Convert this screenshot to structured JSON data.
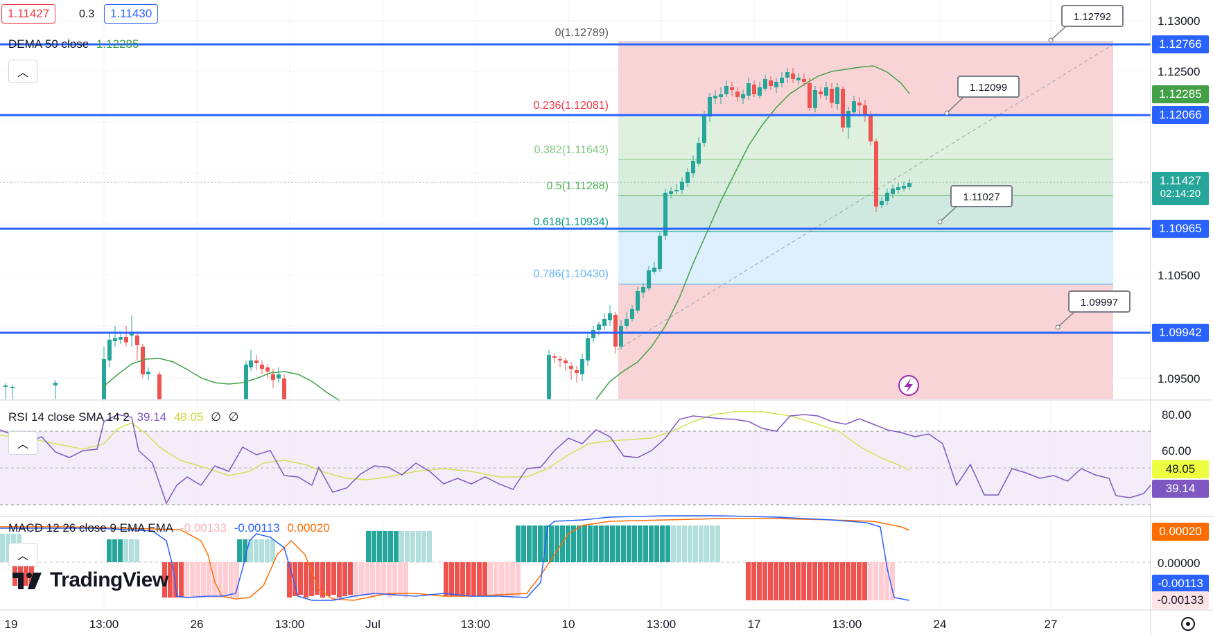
{
  "legend": {
    "bid": "1.11427",
    "spread": "0.3",
    "ask": "1.11430",
    "dema_label": "DEMA 50 close",
    "dema_value": "1.12285",
    "rsi_label": "RSI 14 close SMA 14 2",
    "rsi_value": "39.14",
    "rsi_sma_value": "48.05",
    "rsi_extra1": "∅",
    "rsi_extra2": "∅",
    "macd_label": "MACD 12 26 close 9 EMA EMA",
    "macd_hist": "-0.00133",
    "macd_line": "-0.00113",
    "macd_signal": "0.00020"
  },
  "brand": {
    "name": "TradingView",
    "colors": {
      "up": "#26a69a",
      "down": "#ef5350",
      "level": "#2962ff"
    }
  },
  "fib": [
    {
      "label": "0(1.12789)",
      "price": 1.12789
    },
    {
      "label": "0.236(1.12081)",
      "price": 1.12081,
      "color": "#f23645"
    },
    {
      "label": "0.382(1.11643)",
      "price": 1.11643,
      "color": "#81c784"
    },
    {
      "label": "0.5(1.11288)",
      "price": 1.11288,
      "color": "#4caf50"
    },
    {
      "label": "0.618(1.10934)",
      "price": 1.10934,
      "color": "#089981"
    },
    {
      "label": "0.786(1.10430)",
      "price": 1.1043,
      "color": "#64b5f6"
    }
  ],
  "callouts": [
    "1.12792",
    "1.12099",
    "1.11027",
    "1.09997"
  ],
  "price_axis": {
    "ticks": [
      "1.13000",
      "1.12500",
      "1.10500",
      "1.09500"
    ],
    "tags": [
      {
        "text": "1.12766",
        "price": 1.12766,
        "color": "#2962ff"
      },
      {
        "text": "1.12285",
        "price": 1.12285,
        "color": "#43a047"
      },
      {
        "text": "1.12066",
        "price": 1.12066,
        "color": "#2962ff"
      },
      {
        "text": "1.10965",
        "price": 1.10965,
        "color": "#2962ff"
      },
      {
        "text": "1.09942",
        "price": 1.09942,
        "color": "#2962ff"
      }
    ],
    "current": {
      "price": "1.11427",
      "countdown": "02:14:20"
    }
  },
  "rsi_axis": {
    "ticks": [
      "80.00",
      "60.00"
    ],
    "sma_tag": "48.05",
    "rsi_tag": "39.14"
  },
  "macd_axis": {
    "ticks": [
      "0.00000"
    ],
    "tags": [
      "0.00020",
      "-0.00113",
      "-0.00133"
    ]
  },
  "time_axis": [
    "19",
    "13:00",
    "26",
    "13:00",
    "Jul",
    "13:00",
    "10",
    "13:00",
    "17",
    "13:00",
    "24",
    "27"
  ]
}
